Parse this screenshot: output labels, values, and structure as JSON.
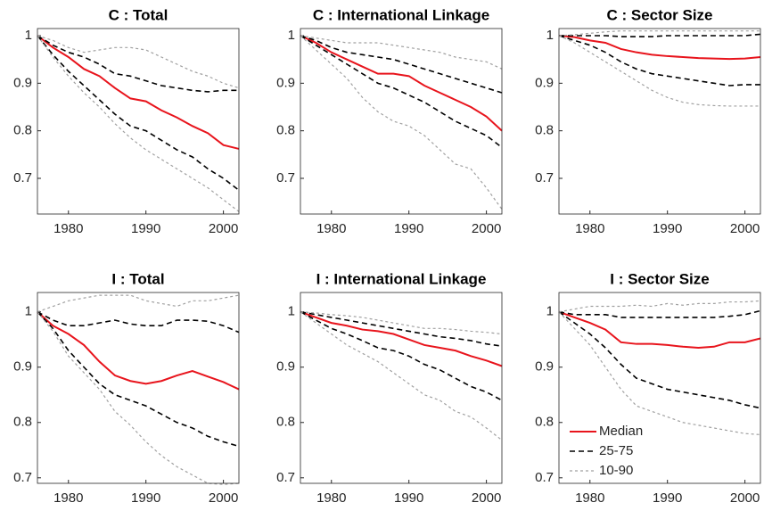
{
  "chart_data": [
    {
      "type": "line",
      "title": "C : Total",
      "x": [
        1976,
        1978,
        1980,
        1982,
        1984,
        1986,
        1988,
        1990,
        1992,
        1994,
        1996,
        1998,
        2000,
        2002
      ],
      "xlim": [
        1976,
        2002
      ],
      "xticks": [
        1980,
        1990,
        2000
      ],
      "ylim": [
        0.625,
        1.015
      ],
      "yticks": [
        0.7,
        0.8,
        0.9,
        1
      ],
      "series": [
        {
          "color": "#e8141c",
          "linestyle": "solid",
          "values": [
            1,
            0.975,
            0.955,
            0.93,
            0.915,
            0.89,
            0.868,
            0.862,
            0.843,
            0.828,
            0.81,
            0.795,
            0.77,
            0.762
          ]
        },
        {
          "color": "#000000",
          "linestyle": "dashed",
          "values": [
            1,
            0.96,
            0.925,
            0.895,
            0.865,
            0.835,
            0.81,
            0.8,
            0.78,
            0.76,
            0.745,
            0.72,
            0.7,
            0.675
          ]
        },
        {
          "color": "#000000",
          "linestyle": "dashed",
          "values": [
            1,
            0.98,
            0.965,
            0.955,
            0.94,
            0.92,
            0.915,
            0.905,
            0.895,
            0.89,
            0.885,
            0.882,
            0.885,
            0.885
          ]
        },
        {
          "color": "#a0a0a0",
          "linestyle": "dotted",
          "values": [
            1,
            0.955,
            0.915,
            0.88,
            0.85,
            0.815,
            0.785,
            0.76,
            0.74,
            0.72,
            0.7,
            0.68,
            0.655,
            0.63
          ]
        },
        {
          "color": "#a0a0a0",
          "linestyle": "dotted",
          "values": [
            1,
            0.99,
            0.975,
            0.965,
            0.97,
            0.975,
            0.975,
            0.97,
            0.955,
            0.94,
            0.925,
            0.915,
            0.9,
            0.89
          ]
        }
      ]
    },
    {
      "type": "line",
      "title": "C : International Linkage",
      "x": [
        1976,
        1978,
        1980,
        1982,
        1984,
        1986,
        1988,
        1990,
        1992,
        1994,
        1996,
        1998,
        2000,
        2002
      ],
      "xlim": [
        1976,
        2002
      ],
      "xticks": [
        1980,
        1990,
        2000
      ],
      "ylim": [
        0.625,
        1.015
      ],
      "yticks": [
        0.7,
        0.8,
        0.9,
        1
      ],
      "series": [
        {
          "color": "#e8141c",
          "linestyle": "solid",
          "values": [
            1,
            0.985,
            0.965,
            0.95,
            0.935,
            0.92,
            0.92,
            0.915,
            0.895,
            0.88,
            0.865,
            0.85,
            0.83,
            0.8
          ]
        },
        {
          "color": "#000000",
          "linestyle": "dashed",
          "values": [
            1,
            0.98,
            0.96,
            0.94,
            0.92,
            0.9,
            0.89,
            0.875,
            0.86,
            0.84,
            0.82,
            0.805,
            0.79,
            0.765
          ]
        },
        {
          "color": "#000000",
          "linestyle": "dashed",
          "values": [
            1,
            0.99,
            0.975,
            0.965,
            0.96,
            0.955,
            0.95,
            0.94,
            0.93,
            0.92,
            0.91,
            0.9,
            0.89,
            0.88
          ]
        },
        {
          "color": "#a0a0a0",
          "linestyle": "dotted",
          "values": [
            1,
            0.97,
            0.94,
            0.91,
            0.87,
            0.84,
            0.82,
            0.81,
            0.79,
            0.76,
            0.73,
            0.72,
            0.68,
            0.635
          ]
        },
        {
          "color": "#a0a0a0",
          "linestyle": "dotted",
          "values": [
            1,
            0.995,
            0.99,
            0.985,
            0.985,
            0.985,
            0.98,
            0.975,
            0.97,
            0.965,
            0.955,
            0.95,
            0.945,
            0.93
          ]
        }
      ]
    },
    {
      "type": "line",
      "title": "C : Sector Size",
      "x": [
        1976,
        1978,
        1980,
        1982,
        1984,
        1986,
        1988,
        1990,
        1992,
        1994,
        1996,
        1998,
        2000,
        2002
      ],
      "xlim": [
        1976,
        2002
      ],
      "xticks": [
        1980,
        1990,
        2000
      ],
      "ylim": [
        0.625,
        1.015
      ],
      "yticks": [
        0.7,
        0.8,
        0.9,
        1
      ],
      "series": [
        {
          "color": "#e8141c",
          "linestyle": "solid",
          "values": [
            1,
            0.997,
            0.99,
            0.985,
            0.972,
            0.965,
            0.96,
            0.957,
            0.955,
            0.953,
            0.952,
            0.951,
            0.952,
            0.955
          ]
        },
        {
          "color": "#000000",
          "linestyle": "dashed",
          "values": [
            1,
            0.99,
            0.98,
            0.965,
            0.945,
            0.93,
            0.92,
            0.915,
            0.91,
            0.905,
            0.9,
            0.895,
            0.897,
            0.897
          ]
        },
        {
          "color": "#000000",
          "linestyle": "dashed",
          "values": [
            1,
            1,
            1,
            1,
            0.998,
            0.998,
            0.998,
            1,
            1,
            1,
            1,
            1,
            1,
            1.003
          ]
        },
        {
          "color": "#a0a0a0",
          "linestyle": "dotted",
          "values": [
            1,
            0.985,
            0.965,
            0.945,
            0.925,
            0.905,
            0.885,
            0.87,
            0.86,
            0.855,
            0.853,
            0.852,
            0.852,
            0.852
          ]
        },
        {
          "color": "#a0a0a0",
          "linestyle": "dotted",
          "values": [
            1,
            1.002,
            1.005,
            1.008,
            1.01,
            1.01,
            1.01,
            1.01,
            1.01,
            1.01,
            1.01,
            1.01,
            1.01,
            1.01
          ]
        }
      ]
    },
    {
      "type": "line",
      "title": "I : Total",
      "x": [
        1976,
        1978,
        1980,
        1982,
        1984,
        1986,
        1988,
        1990,
        1992,
        1994,
        1996,
        1998,
        2000,
        2002
      ],
      "xlim": [
        1976,
        2002
      ],
      "xticks": [
        1980,
        1990,
        2000
      ],
      "ylim": [
        0.69,
        1.035
      ],
      "yticks": [
        0.7,
        0.8,
        0.9,
        1
      ],
      "series": [
        {
          "color": "#e8141c",
          "linestyle": "solid",
          "values": [
            1,
            0.975,
            0.96,
            0.94,
            0.91,
            0.885,
            0.875,
            0.87,
            0.875,
            0.885,
            0.893,
            0.883,
            0.873,
            0.86
          ]
        },
        {
          "color": "#000000",
          "linestyle": "dashed",
          "values": [
            1,
            0.97,
            0.93,
            0.9,
            0.87,
            0.85,
            0.84,
            0.83,
            0.815,
            0.8,
            0.79,
            0.775,
            0.765,
            0.757
          ]
        },
        {
          "color": "#000000",
          "linestyle": "dashed",
          "values": [
            1,
            0.985,
            0.975,
            0.975,
            0.98,
            0.985,
            0.978,
            0.975,
            0.975,
            0.985,
            0.985,
            0.983,
            0.975,
            0.963
          ]
        },
        {
          "color": "#a0a0a0",
          "linestyle": "dotted",
          "values": [
            1,
            0.965,
            0.92,
            0.89,
            0.86,
            0.82,
            0.795,
            0.765,
            0.74,
            0.72,
            0.705,
            0.69,
            0.688,
            0.69
          ]
        },
        {
          "color": "#a0a0a0",
          "linestyle": "dotted",
          "values": [
            1,
            1.01,
            1.02,
            1.025,
            1.03,
            1.03,
            1.03,
            1.02,
            1.015,
            1.01,
            1.02,
            1.02,
            1.025,
            1.03
          ]
        }
      ]
    },
    {
      "type": "line",
      "title": "I : International Linkage",
      "x": [
        1976,
        1978,
        1980,
        1982,
        1984,
        1986,
        1988,
        1990,
        1992,
        1994,
        1996,
        1998,
        2000,
        2002
      ],
      "xlim": [
        1976,
        2002
      ],
      "xticks": [
        1980,
        1990,
        2000
      ],
      "ylim": [
        0.69,
        1.035
      ],
      "yticks": [
        0.7,
        0.8,
        0.9,
        1
      ],
      "series": [
        {
          "color": "#e8141c",
          "linestyle": "solid",
          "values": [
            1,
            0.99,
            0.98,
            0.975,
            0.968,
            0.965,
            0.96,
            0.95,
            0.94,
            0.935,
            0.93,
            0.92,
            0.912,
            0.902
          ]
        },
        {
          "color": "#000000",
          "linestyle": "dashed",
          "values": [
            1,
            0.985,
            0.97,
            0.96,
            0.948,
            0.935,
            0.93,
            0.92,
            0.905,
            0.895,
            0.88,
            0.865,
            0.855,
            0.84
          ]
        },
        {
          "color": "#000000",
          "linestyle": "dashed",
          "values": [
            1,
            0.995,
            0.99,
            0.985,
            0.98,
            0.975,
            0.97,
            0.965,
            0.96,
            0.955,
            0.952,
            0.948,
            0.942,
            0.938
          ]
        },
        {
          "color": "#a0a0a0",
          "linestyle": "dotted",
          "values": [
            1,
            0.98,
            0.96,
            0.94,
            0.925,
            0.91,
            0.89,
            0.87,
            0.85,
            0.84,
            0.82,
            0.81,
            0.79,
            0.768
          ]
        },
        {
          "color": "#a0a0a0",
          "linestyle": "dotted",
          "values": [
            1,
            0.998,
            0.995,
            0.993,
            0.99,
            0.985,
            0.98,
            0.975,
            0.97,
            0.97,
            0.968,
            0.965,
            0.963,
            0.96
          ]
        }
      ]
    },
    {
      "type": "line",
      "title": "I : Sector Size",
      "x": [
        1976,
        1978,
        1980,
        1982,
        1984,
        1986,
        1988,
        1990,
        1992,
        1994,
        1996,
        1998,
        2000,
        2002
      ],
      "xlim": [
        1976,
        2002
      ],
      "xticks": [
        1980,
        1990,
        2000
      ],
      "ylim": [
        0.69,
        1.035
      ],
      "yticks": [
        0.7,
        0.8,
        0.9,
        1
      ],
      "legend": "lower left",
      "series": [
        {
          "name": "Median",
          "color": "#e8141c",
          "linestyle": "solid",
          "values": [
            1,
            0.99,
            0.98,
            0.968,
            0.945,
            0.942,
            0.942,
            0.94,
            0.937,
            0.935,
            0.937,
            0.945,
            0.945,
            0.952
          ]
        },
        {
          "name": "25-75",
          "color": "#000000",
          "linestyle": "dashed",
          "values": [
            1,
            0.98,
            0.96,
            0.935,
            0.905,
            0.88,
            0.87,
            0.86,
            0.855,
            0.85,
            0.845,
            0.84,
            0.832,
            0.826
          ]
        },
        {
          "color": "#000000",
          "linestyle": "dashed",
          "values": [
            1,
            0.995,
            0.995,
            0.995,
            0.99,
            0.99,
            0.99,
            0.99,
            0.99,
            0.99,
            0.99,
            0.992,
            0.995,
            1.002
          ]
        },
        {
          "name": "10-90",
          "color": "#a0a0a0",
          "linestyle": "dotted",
          "values": [
            1,
            0.97,
            0.94,
            0.9,
            0.86,
            0.83,
            0.82,
            0.81,
            0.8,
            0.795,
            0.79,
            0.785,
            0.78,
            0.778
          ]
        },
        {
          "color": "#a0a0a0",
          "linestyle": "dotted",
          "values": [
            1,
            1.005,
            1.01,
            1.01,
            1.01,
            1.012,
            1.01,
            1.015,
            1.012,
            1.015,
            1.015,
            1.018,
            1.018,
            1.02
          ]
        }
      ]
    }
  ]
}
